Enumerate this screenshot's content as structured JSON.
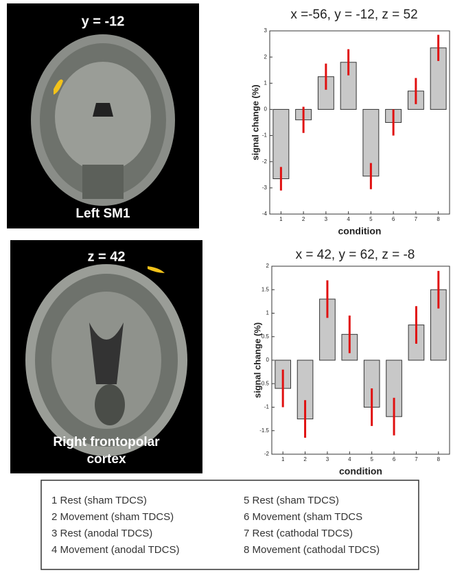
{
  "panels": [
    {
      "coordinate": "y =  -12",
      "label": "Left SM1"
    },
    {
      "coordinate": "z =  42",
      "label_lines": [
        "Right frontopolar",
        "cortex"
      ]
    }
  ],
  "chart_data": [
    {
      "type": "bar",
      "title": "x =-56, y = -12, z = 52",
      "ylabel": "signal change (%)",
      "xlabel": "condition",
      "categories": [
        "1",
        "2",
        "3",
        "4",
        "5",
        "6",
        "7",
        "8"
      ],
      "values": [
        -2.65,
        -0.4,
        1.25,
        1.8,
        -2.55,
        -0.5,
        0.7,
        2.35
      ],
      "errors": [
        0.45,
        0.5,
        0.5,
        0.5,
        0.5,
        0.5,
        0.5,
        0.5
      ],
      "color": "#c8c8c8",
      "error_color": "#e01010",
      "ylim": [
        -4,
        3
      ],
      "yticks": [
        -4,
        -3,
        -2,
        -1,
        0,
        1,
        2,
        3
      ]
    },
    {
      "type": "bar",
      "title": "x = 42, y = 62, z = -8",
      "ylabel": "signal change (%)",
      "xlabel": "condition",
      "categories": [
        "1",
        "2",
        "3",
        "4",
        "5",
        "6",
        "7",
        "8"
      ],
      "values": [
        -0.6,
        -1.25,
        1.3,
        0.55,
        -1.0,
        -1.2,
        0.75,
        1.5
      ],
      "errors": [
        0.4,
        0.4,
        0.4,
        0.4,
        0.4,
        0.4,
        0.4,
        0.4
      ],
      "color": "#c8c8c8",
      "error_color": "#e01010",
      "ylim": [
        -2,
        2
      ],
      "yticks": [
        -2,
        -1.5,
        -1,
        -0.5,
        0,
        0.5,
        1,
        1.5,
        2
      ]
    }
  ],
  "legend": [
    "1 Rest (sham TDCS)",
    "2 Movement (sham TDCS)",
    "3 Rest (anodal TDCS)",
    "4 Movement (anodal TDCS)",
    "5 Rest (sham TDCS)",
    "6 Movement (sham TDCS",
    "7 Rest (cathodal TDCS)",
    "8 Movement (cathodal TDCS)"
  ]
}
